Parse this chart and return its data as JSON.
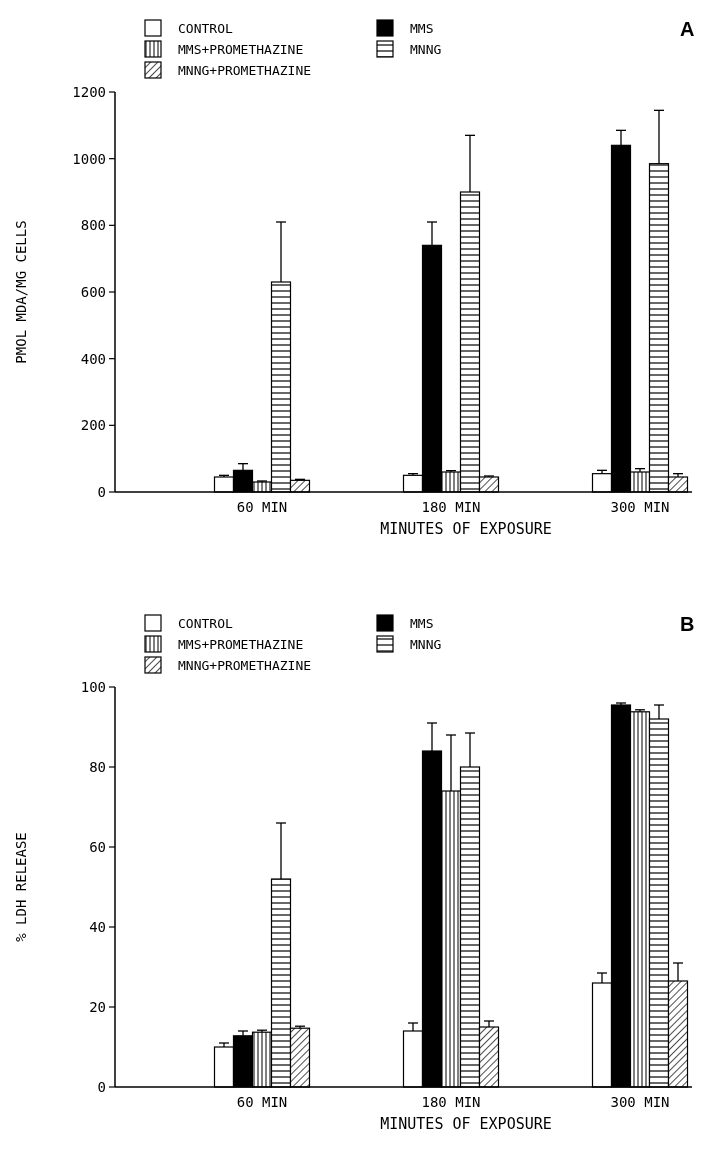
{
  "chart_data": [
    {
      "type": "bar",
      "categories": [
        "60 MIN",
        "180 MIN",
        "300 MIN"
      ],
      "xlabel": "MINUTES OF EXPOSURE",
      "ylabel": "PMOL MDA/MG CELLS",
      "ylim": [
        0,
        1200
      ],
      "yticks": [
        0,
        200,
        400,
        600,
        800,
        1000,
        1200
      ],
      "legend": "top",
      "grid": false,
      "annotations": [
        "A"
      ],
      "series": [
        {
          "name": "CONTROL",
          "color": "#ffffff",
          "values": [
            45,
            50,
            55
          ],
          "errors": [
            [
              45,
              50
            ],
            [
              50,
              55
            ],
            [
              55,
              65
            ]
          ]
        },
        {
          "name": "MMS",
          "color": "#000000",
          "values": [
            65,
            740,
            1040
          ],
          "errors": [
            [
              65,
              85
            ],
            [
              740,
              810
            ],
            [
              1040,
              1085
            ]
          ]
        },
        {
          "name": "MMS+PROMETHAZINE",
          "color": "#000000",
          "values": [
            30,
            60,
            60
          ],
          "errors": [
            [
              30,
              33
            ],
            [
              60,
              64
            ],
            [
              60,
              70
            ]
          ]
        },
        {
          "name": "MNNG",
          "color": "#000000",
          "values": [
            630,
            900,
            985
          ],
          "errors": [
            [
              630,
              810
            ],
            [
              900,
              1070
            ],
            [
              985,
              1145
            ]
          ]
        },
        {
          "name": "MNNG+PROMETHAZINE",
          "color": "#000000",
          "values": [
            35,
            45,
            45
          ],
          "errors": [
            [
              35,
              38
            ],
            [
              45,
              48
            ],
            [
              45,
              55
            ]
          ]
        }
      ]
    },
    {
      "type": "bar",
      "categories": [
        "60 MIN",
        "180 MIN",
        "300 MIN"
      ],
      "xlabel": "MINUTES OF EXPOSURE",
      "ylabel": "% LDH RELEASE",
      "ylim": [
        0,
        100
      ],
      "yticks": [
        0,
        20,
        40,
        60,
        80,
        100
      ],
      "legend": "top",
      "grid": false,
      "annotations": [
        "B"
      ],
      "series": [
        {
          "name": "CONTROL",
          "color": "#ffffff",
          "values": [
            10,
            14,
            26
          ],
          "errors": [
            [
              10,
              11
            ],
            [
              14,
              16
            ],
            [
              26,
              28.5
            ]
          ]
        },
        {
          "name": "MMS",
          "color": "#000000",
          "values": [
            12.8,
            84,
            95.5
          ],
          "errors": [
            [
              12.8,
              14
            ],
            [
              84,
              91
            ],
            [
              95.5,
              96
            ]
          ]
        },
        {
          "name": "MMS+PROMETHAZINE",
          "color": "#000000",
          "values": [
            13.7,
            74,
            93.8
          ],
          "errors": [
            [
              13.7,
              14.2
            ],
            [
              74,
              88
            ],
            [
              93.8,
              94.3
            ]
          ]
        },
        {
          "name": "MNNG",
          "color": "#000000",
          "values": [
            52,
            80,
            92
          ],
          "errors": [
            [
              52,
              66
            ],
            [
              80,
              88.5
            ],
            [
              92,
              95.5
            ]
          ]
        },
        {
          "name": "MNNG+PROMETHAZINE",
          "color": "#000000",
          "values": [
            14.7,
            15,
            26.5
          ],
          "errors": [
            [
              14.7,
              15.2
            ],
            [
              15,
              16.5
            ],
            [
              26.5,
              31
            ]
          ]
        }
      ]
    }
  ]
}
